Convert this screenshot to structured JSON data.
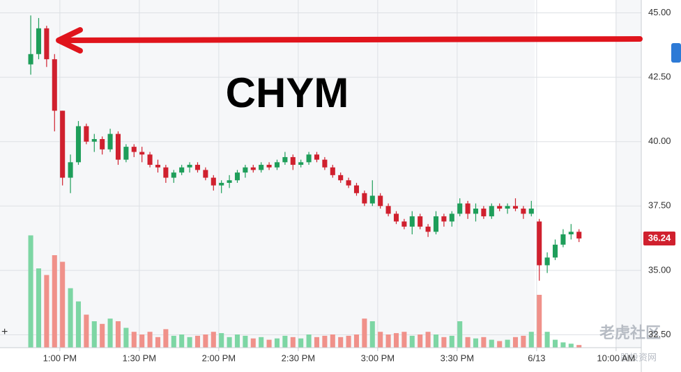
{
  "chart_data": {
    "type": "candlestick",
    "annotation": "CHYM",
    "x": [
      49,
      52,
      55,
      58,
      61,
      64,
      67,
      70,
      73,
      76,
      79,
      82,
      85,
      88,
      91,
      94,
      97,
      100,
      103,
      106,
      109,
      112,
      115,
      118,
      121,
      124,
      127,
      130,
      133,
      136,
      139,
      142,
      145,
      148,
      151,
      154,
      157,
      160,
      163,
      166,
      169,
      172,
      175,
      178,
      181,
      184,
      187,
      190,
      193,
      196,
      199,
      202,
      205,
      208,
      211,
      214,
      217,
      220,
      223,
      226,
      229,
      232,
      235,
      238,
      241,
      244,
      247,
      250,
      253,
      256
    ],
    "open": [
      43.0,
      43.4,
      44.4,
      43.2,
      41.2,
      38.6,
      39.2,
      40.6,
      40.0,
      40.1,
      39.7,
      40.3,
      39.3,
      39.8,
      39.6,
      39.5,
      39.1,
      39.0,
      38.6,
      38.8,
      39.0,
      39.1,
      38.9,
      38.6,
      38.3,
      38.4,
      38.5,
      38.8,
      39.0,
      38.9,
      39.1,
      39.0,
      39.2,
      39.4,
      39.1,
      39.2,
      39.5,
      39.3,
      39.0,
      38.7,
      38.5,
      38.3,
      38.0,
      37.6,
      37.9,
      37.5,
      37.2,
      36.9,
      36.7,
      37.1,
      36.7,
      36.5,
      37.1,
      36.9,
      37.2,
      37.6,
      37.2,
      37.4,
      37.1,
      37.5,
      37.4,
      37.5,
      37.4,
      37.2,
      36.9,
      35.2,
      35.5,
      36.0,
      36.4,
      36.5
    ],
    "high": [
      44.9,
      44.8,
      44.5,
      43.4,
      41.2,
      39.5,
      40.8,
      40.7,
      40.3,
      40.2,
      40.5,
      40.4,
      39.9,
      39.9,
      39.8,
      39.6,
      39.3,
      39.1,
      38.9,
      39.1,
      39.2,
      39.2,
      39.0,
      38.7,
      38.5,
      38.7,
      38.9,
      39.1,
      39.1,
      39.2,
      39.2,
      39.3,
      39.6,
      39.5,
      39.3,
      39.6,
      39.6,
      39.4,
      39.1,
      38.8,
      38.6,
      38.4,
      38.1,
      38.5,
      38.0,
      37.6,
      37.3,
      37.0,
      37.3,
      37.2,
      36.8,
      37.3,
      37.2,
      37.3,
      37.8,
      37.7,
      37.6,
      37.5,
      37.6,
      37.6,
      37.6,
      37.8,
      37.5,
      37.7,
      37.0,
      35.7,
      36.2,
      36.6,
      36.8,
      36.6
    ],
    "low": [
      42.6,
      43.2,
      42.9,
      40.4,
      38.3,
      38.0,
      39.1,
      39.9,
      39.6,
      39.5,
      39.6,
      39.1,
      39.2,
      39.4,
      39.2,
      39.0,
      38.8,
      38.4,
      38.4,
      38.7,
      38.8,
      38.8,
      38.5,
      38.1,
      38.0,
      38.2,
      38.4,
      38.6,
      38.8,
      38.8,
      38.9,
      38.9,
      39.1,
      38.9,
      39.0,
      39.1,
      39.2,
      38.9,
      38.6,
      38.4,
      38.2,
      37.9,
      37.5,
      37.5,
      37.4,
      37.1,
      36.8,
      36.6,
      36.4,
      36.6,
      36.3,
      36.4,
      36.7,
      36.7,
      37.1,
      37.0,
      36.9,
      37.0,
      37.0,
      37.3,
      37.2,
      37.3,
      37.0,
      37.1,
      34.6,
      34.9,
      35.4,
      35.9,
      36.2,
      36.1
    ],
    "close": [
      43.4,
      44.4,
      43.2,
      41.2,
      38.6,
      39.2,
      40.6,
      40.0,
      40.1,
      39.7,
      40.3,
      39.3,
      39.8,
      39.6,
      39.5,
      39.1,
      39.0,
      38.6,
      38.8,
      39.0,
      39.1,
      38.9,
      38.6,
      38.3,
      38.4,
      38.5,
      38.8,
      39.0,
      38.9,
      39.1,
      39.0,
      39.2,
      39.4,
      39.1,
      39.2,
      39.5,
      39.3,
      39.0,
      38.7,
      38.5,
      38.3,
      38.0,
      37.6,
      37.9,
      37.5,
      37.2,
      36.9,
      36.7,
      37.1,
      36.7,
      36.5,
      37.1,
      36.9,
      37.2,
      37.6,
      37.2,
      37.4,
      37.1,
      37.5,
      37.4,
      37.5,
      37.4,
      37.2,
      37.4,
      35.2,
      35.5,
      36.0,
      36.4,
      36.5,
      36.24
    ],
    "volume": [
      85,
      60,
      55,
      70,
      65,
      45,
      35,
      25,
      20,
      18,
      22,
      20,
      15,
      12,
      10,
      12,
      8,
      14,
      9,
      10,
      8,
      9,
      10,
      12,
      11,
      8,
      10,
      9,
      7,
      8,
      6,
      7,
      9,
      8,
      7,
      10,
      8,
      9,
      10,
      8,
      9,
      10,
      22,
      20,
      12,
      10,
      11,
      12,
      9,
      10,
      12,
      10,
      8,
      9,
      20,
      8,
      7,
      8,
      6,
      5,
      6,
      8,
      9,
      12,
      40,
      12,
      6,
      4,
      3,
      2
    ],
    "up_color": "#1e9e5a",
    "down_color": "#d0202e",
    "up_volume_color": "#7dd6a4",
    "down_volume_color": "#f0918a",
    "xlim": [
      37.4,
      279.5
    ],
    "xticks": [
      {
        "value": 60,
        "label": "1:00 PM"
      },
      {
        "value": 90,
        "label": "1:30 PM"
      },
      {
        "value": 120,
        "label": "2:00 PM"
      },
      {
        "value": 150,
        "label": "2:30 PM"
      },
      {
        "value": 180,
        "label": "3:00 PM"
      },
      {
        "value": 210,
        "label": "3:30 PM"
      },
      {
        "value": 240,
        "label": "6/13"
      },
      {
        "value": 270,
        "label": "10:00 AM"
      }
    ],
    "ylim": [
      32,
      45.5
    ],
    "yticks": [
      {
        "value": 32.5,
        "label": "32.50"
      },
      {
        "value": 35,
        "label": "35.00"
      },
      {
        "value": 37.5,
        "label": "37.50"
      },
      {
        "value": 40,
        "label": "40.00"
      },
      {
        "value": 42.5,
        "label": "42.50"
      },
      {
        "value": 45,
        "label": "45.00"
      }
    ],
    "vlim": [
      0,
      100
    ],
    "last_price": 36.24,
    "grid": true
  },
  "watermark": {
    "brand": "老虎社区",
    "site": "股投资网"
  }
}
